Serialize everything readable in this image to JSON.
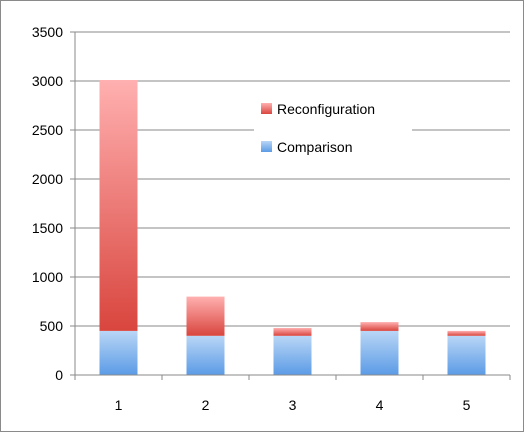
{
  "chart_data": {
    "type": "bar",
    "stacked": true,
    "title": "",
    "xlabel": "",
    "ylabel": "",
    "categories": [
      "1",
      "2",
      "3",
      "4",
      "5"
    ],
    "ylim": [
      0,
      3500
    ],
    "yticks": [
      0,
      500,
      1000,
      1500,
      2000,
      2500,
      3000,
      3500
    ],
    "yticks_labels": [
      "0",
      "500",
      "1000",
      "1500",
      "2000",
      "2500",
      "3000",
      "3500"
    ],
    "grid": "horizontal",
    "legend_position": "upper-middle",
    "series": [
      {
        "name": "Comparison",
        "values": [
          450,
          400,
          400,
          450,
          400
        ],
        "color": "#5b9be6",
        "color_light": "#b9d6f6"
      },
      {
        "name": "Reconfiguration",
        "values": [
          2560,
          400,
          80,
          90,
          50
        ],
        "color": "#d9453e",
        "color_light": "#ffb0b0"
      }
    ]
  }
}
